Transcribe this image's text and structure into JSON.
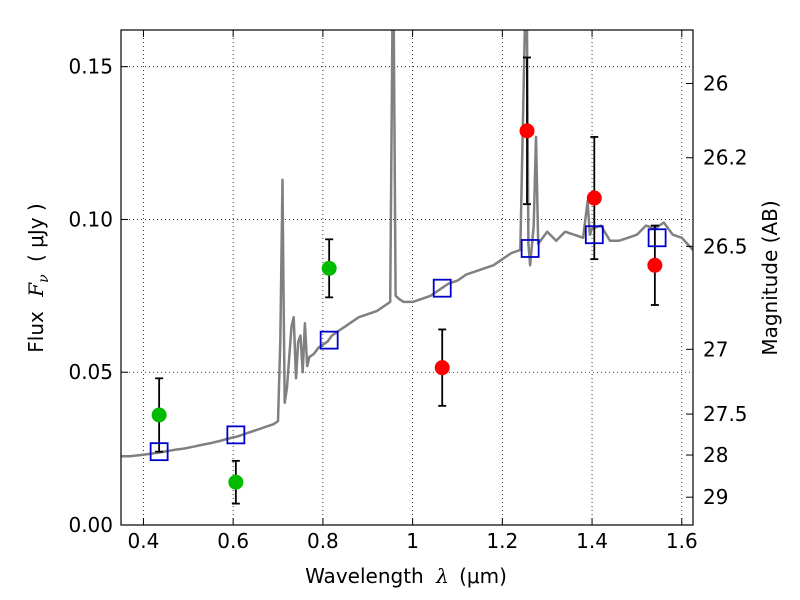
{
  "chart_data": {
    "type": "scatter",
    "title": "",
    "xlabel": "Wavelength",
    "xlabel_symbol": "λ",
    "xlabel_unit": "(μm)",
    "ylabel": "Flux",
    "ylabel_symbol": "F",
    "ylabel_subscript": "ν",
    "ylabel_unit": "( μJy )",
    "y2label": "Magnitude (AB)",
    "xlim": [
      0.35,
      1.625
    ],
    "ylim": [
      0.0,
      0.162
    ],
    "grid": true,
    "x_ticks": [
      {
        "value": 0.4,
        "label": "0.4"
      },
      {
        "value": 0.6,
        "label": "0.6"
      },
      {
        "value": 0.8,
        "label": "0.8"
      },
      {
        "value": 1.0,
        "label": "1"
      },
      {
        "value": 1.2,
        "label": "1.2"
      },
      {
        "value": 1.4,
        "label": "1.4"
      },
      {
        "value": 1.6,
        "label": "1.6"
      }
    ],
    "y_ticks": [
      {
        "value": 0.0,
        "label": "0.00"
      },
      {
        "value": 0.05,
        "label": "0.05"
      },
      {
        "value": 0.1,
        "label": "0.10"
      },
      {
        "value": 0.15,
        "label": "0.15"
      }
    ],
    "y2_ticks": [
      {
        "flux": 0.1445,
        "label": "26"
      },
      {
        "flux": 0.1202,
        "label": "26.2"
      },
      {
        "flux": 0.0912,
        "label": "26.5"
      },
      {
        "flux": 0.0575,
        "label": "27"
      },
      {
        "flux": 0.0363,
        "label": "27.5"
      },
      {
        "flux": 0.0229,
        "label": "28"
      },
      {
        "flux": 0.0091,
        "label": "29"
      }
    ],
    "series": [
      {
        "name": "model spectrum",
        "kind": "line",
        "color": "#808080",
        "x": [
          0.35,
          0.37,
          0.39,
          0.41,
          0.43,
          0.45,
          0.47,
          0.49,
          0.51,
          0.53,
          0.55,
          0.57,
          0.59,
          0.61,
          0.63,
          0.65,
          0.67,
          0.69,
          0.7,
          0.705,
          0.71,
          0.712,
          0.715,
          0.72,
          0.73,
          0.735,
          0.74,
          0.745,
          0.75,
          0.755,
          0.76,
          0.765,
          0.77,
          0.78,
          0.79,
          0.8,
          0.81,
          0.82,
          0.83,
          0.84,
          0.85,
          0.86,
          0.88,
          0.9,
          0.92,
          0.94,
          0.95,
          0.955,
          0.958,
          0.962,
          0.97,
          0.98,
          1.0,
          1.02,
          1.04,
          1.06,
          1.08,
          1.1,
          1.12,
          1.14,
          1.16,
          1.18,
          1.2,
          1.22,
          1.24,
          1.25,
          1.255,
          1.258,
          1.262,
          1.27,
          1.275,
          1.28,
          1.29,
          1.3,
          1.32,
          1.34,
          1.36,
          1.38,
          1.39,
          1.395,
          1.4,
          1.42,
          1.44,
          1.46,
          1.48,
          1.5,
          1.52,
          1.54,
          1.56,
          1.58,
          1.6,
          1.625
        ],
        "values": [
          0.0225,
          0.0225,
          0.0228,
          0.0232,
          0.0236,
          0.0241,
          0.0246,
          0.025,
          0.0256,
          0.0262,
          0.0268,
          0.0275,
          0.0283,
          0.029,
          0.03,
          0.031,
          0.032,
          0.033,
          0.034,
          0.06,
          0.113,
          0.08,
          0.04,
          0.045,
          0.065,
          0.068,
          0.048,
          0.06,
          0.062,
          0.05,
          0.066,
          0.052,
          0.055,
          0.056,
          0.058,
          0.059,
          0.06,
          0.062,
          0.063,
          0.064,
          0.065,
          0.066,
          0.068,
          0.069,
          0.07,
          0.072,
          0.073,
          0.162,
          0.162,
          0.075,
          0.074,
          0.073,
          0.073,
          0.074,
          0.075,
          0.077,
          0.079,
          0.08,
          0.082,
          0.083,
          0.084,
          0.085,
          0.087,
          0.089,
          0.09,
          0.162,
          0.162,
          0.092,
          0.085,
          0.098,
          0.127,
          0.092,
          0.094,
          0.096,
          0.093,
          0.096,
          0.095,
          0.094,
          0.106,
          0.095,
          0.097,
          0.098,
          0.093,
          0.093,
          0.094,
          0.095,
          0.098,
          0.097,
          0.099,
          0.095,
          0.094,
          0.09
        ]
      },
      {
        "name": "observed (green)",
        "kind": "marker-circle",
        "color": "#00bb00",
        "points": [
          {
            "x": 0.435,
            "y": 0.036,
            "err": 0.012
          },
          {
            "x": 0.606,
            "y": 0.014,
            "err": 0.007
          },
          {
            "x": 0.814,
            "y": 0.084,
            "err": 0.0095
          }
        ]
      },
      {
        "name": "observed (red)",
        "kind": "marker-circle",
        "color": "#ff0000",
        "points": [
          {
            "x": 1.066,
            "y": 0.0515,
            "err": 0.0125
          },
          {
            "x": 1.255,
            "y": 0.129,
            "err": 0.024
          },
          {
            "x": 1.405,
            "y": 0.107,
            "err": 0.02
          },
          {
            "x": 1.54,
            "y": 0.085,
            "err": 0.013
          }
        ]
      },
      {
        "name": "model photometry",
        "kind": "marker-square",
        "color": "#0000cc",
        "points": [
          {
            "x": 0.435,
            "y": 0.024
          },
          {
            "x": 0.606,
            "y": 0.0295
          },
          {
            "x": 0.814,
            "y": 0.0605
          },
          {
            "x": 1.066,
            "y": 0.0775
          },
          {
            "x": 1.262,
            "y": 0.0905
          },
          {
            "x": 1.405,
            "y": 0.095
          },
          {
            "x": 1.545,
            "y": 0.094
          }
        ]
      }
    ]
  }
}
